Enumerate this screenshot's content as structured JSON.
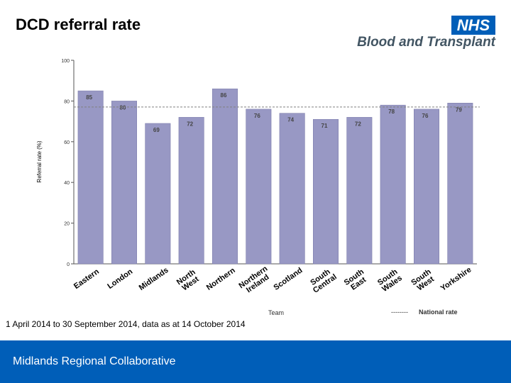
{
  "title": "DCD referral rate",
  "logo": {
    "nhs": "NHS",
    "subtitle": "Blood and Transplant"
  },
  "caption": "1 April 2014 to 30 September 2014, data as at 14 October 2014",
  "footer": {
    "text": "Midlands Regional Collaborative"
  },
  "colors": {
    "bar": "#9898c4",
    "bar_stroke": "#7a7aa8",
    "brand_blue": "#005eb8",
    "axis": "#555555",
    "national_line": "#808080"
  },
  "chart_data": {
    "type": "bar",
    "title": "",
    "xlabel": "Team",
    "ylabel": "Referral rate (%)",
    "ylim": [
      0,
      100
    ],
    "yticks": [
      0,
      20,
      40,
      60,
      80,
      100
    ],
    "categories": [
      "Eastern",
      "London",
      "Midlands",
      "North West",
      "Northern",
      "Northern Ireland",
      "Scotland",
      "South Central",
      "South East",
      "South Wales",
      "South West",
      "Yorkshire"
    ],
    "category_label_lines": [
      [
        "Eastern"
      ],
      [
        "London"
      ],
      [
        "Midlands"
      ],
      [
        "North",
        "West"
      ],
      [
        "Northern"
      ],
      [
        "Northern",
        "Ireland"
      ],
      [
        "Scotland"
      ],
      [
        "South",
        "Central"
      ],
      [
        "South",
        "East"
      ],
      [
        "South",
        "Wales"
      ],
      [
        "South",
        "West"
      ],
      [
        "Yorkshire"
      ]
    ],
    "values": [
      85,
      80,
      69,
      72,
      86,
      76,
      74,
      71,
      72,
      78,
      76,
      79
    ],
    "value_labels": [
      "85",
      "80",
      "69",
      "72",
      "86",
      "76",
      "74",
      "71",
      "72",
      "78",
      "76",
      "79"
    ],
    "national_rate": 76,
    "legend": {
      "line_text": "--------",
      "label": "National rate",
      "placement": "bottom-right"
    }
  }
}
